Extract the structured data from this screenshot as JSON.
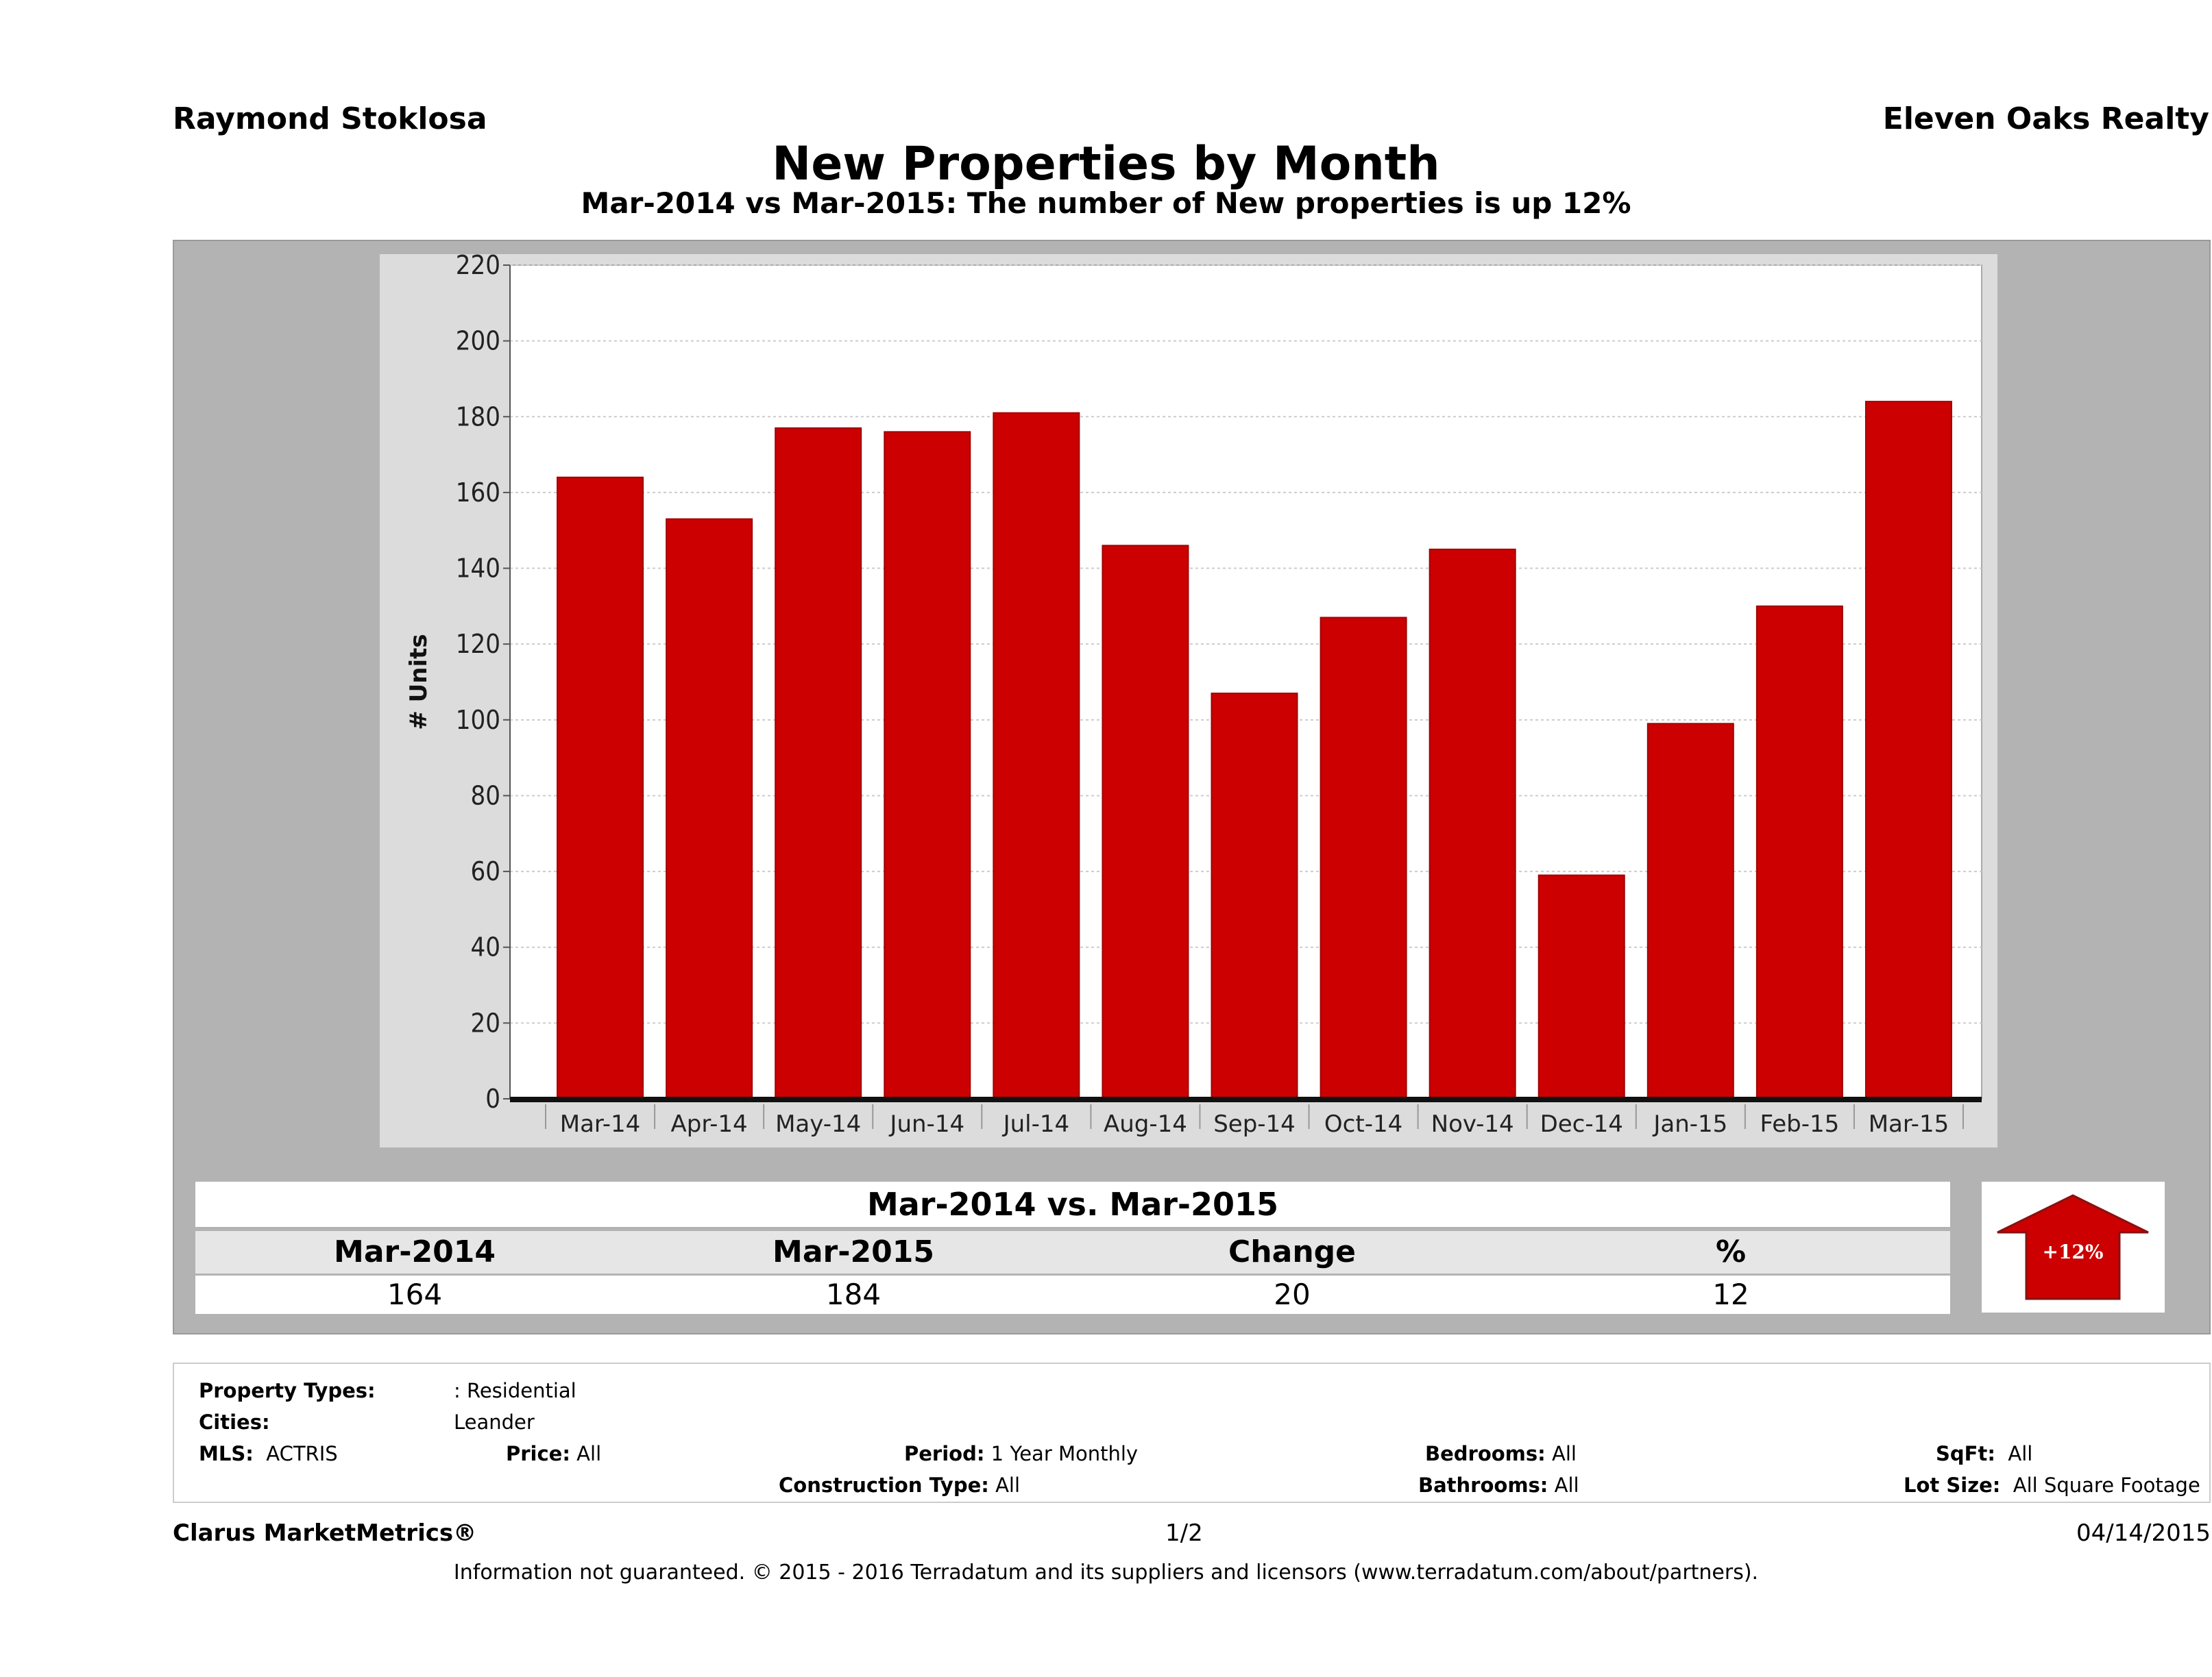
{
  "header": {
    "agent": "Raymond Stoklosa",
    "brokerage": "Eleven Oaks Realty"
  },
  "chart_data": {
    "type": "bar",
    "title": "New Properties by Month",
    "subtitle": "Mar-2014 vs Mar-2015: The number of New  properties is up 12%",
    "ylabel": "# Units",
    "xlabel": "",
    "ylim": [
      0,
      220
    ],
    "yticks": [
      "0",
      "20",
      "40",
      "60",
      "80",
      "100",
      "120",
      "140",
      "160",
      "180",
      "200",
      "220"
    ],
    "grid": true,
    "color": "#cc0000",
    "categories": [
      "Mar-14",
      "Apr-14",
      "May-14",
      "Jun-14",
      "Jul-14",
      "Aug-14",
      "Sep-14",
      "Oct-14",
      "Nov-14",
      "Dec-14",
      "Jan-15",
      "Feb-15",
      "Mar-15"
    ],
    "values": [
      164,
      153,
      177,
      176,
      181,
      146,
      107,
      127,
      145,
      59,
      99,
      130,
      184
    ]
  },
  "summary": {
    "title": "Mar-2014 vs. Mar-2015",
    "headers": [
      "Mar-2014",
      "Mar-2015",
      "Change",
      "%"
    ],
    "values": [
      "164",
      "184",
      "20",
      "12"
    ],
    "badge": "+12%",
    "arrow_icon": "up-arrow-icon",
    "arrow_color": "#cc0000"
  },
  "filters": {
    "property_types_label": "Property Types:",
    "property_types": ": Residential",
    "cities_label": "Cities:",
    "cities": "Leander",
    "mls_label": "MLS:",
    "mls": "ACTRIS",
    "price_label": "Price:",
    "price": "All",
    "period_label": "Period:",
    "period": "1 Year Monthly",
    "bedrooms_label": "Bedrooms:",
    "bedrooms": "All",
    "sqft_label": "SqFt:",
    "sqft": "All",
    "construction_label": "Construction Type:",
    "construction": "All",
    "bathrooms_label": "Bathrooms:",
    "bathrooms": "All",
    "lotsize_label": "Lot Size:",
    "lotsize": "All Square Footage"
  },
  "footer": {
    "brand": "Clarus MarketMetrics®",
    "page": "1/2",
    "date": "04/14/2015",
    "disclaimer": "Information not guaranteed. © 2015 - 2016 Terradatum and its suppliers and licensors (www.terradatum.com/about/partners)."
  }
}
